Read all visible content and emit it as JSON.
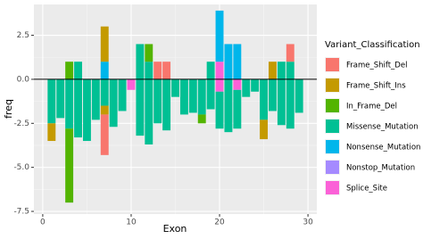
{
  "chart_data": {
    "type": "bar",
    "x_label": "Exon",
    "y_label": "freq",
    "legend_title": "Variant_Classification",
    "x": [
      1,
      2,
      3,
      4,
      5,
      6,
      7,
      8,
      9,
      10,
      11,
      12,
      13,
      14,
      15,
      16,
      17,
      18,
      19,
      20,
      21,
      22,
      23,
      24,
      25,
      26,
      27,
      28,
      29
    ],
    "series": [
      {
        "name": "Frame_Shift_Del",
        "color": "#F8766D",
        "values": [
          null,
          null,
          null,
          null,
          null,
          null,
          null,
          null,
          null,
          null,
          null,
          null,
          1,
          1,
          null,
          null,
          null,
          null,
          null,
          null,
          null,
          null,
          null,
          null,
          null,
          null,
          null,
          1,
          null
        ],
        "lower_values": [
          null,
          null,
          null,
          null,
          null,
          null,
          -2.3,
          null,
          null,
          null,
          null,
          null,
          null,
          null,
          null,
          null,
          null,
          null,
          null,
          null,
          null,
          null,
          null,
          null,
          null,
          null,
          null,
          null,
          null
        ]
      },
      {
        "name": "Frame_Shift_Ins",
        "color": "#C49A00",
        "values": [
          null,
          null,
          null,
          null,
          null,
          null,
          2,
          null,
          null,
          null,
          null,
          null,
          null,
          null,
          null,
          null,
          null,
          null,
          null,
          null,
          null,
          null,
          null,
          null,
          null,
          1,
          null,
          null,
          null
        ],
        "lower_values": [
          -1,
          null,
          null,
          null,
          null,
          null,
          -0.5,
          null,
          null,
          null,
          null,
          null,
          null,
          null,
          null,
          null,
          null,
          null,
          null,
          null,
          null,
          null,
          null,
          null,
          -1.1,
          null,
          null,
          null,
          null
        ]
      },
      {
        "name": "In_Frame_Del",
        "color": "#53B400",
        "values": [
          null,
          null,
          1,
          null,
          null,
          null,
          null,
          null,
          null,
          null,
          null,
          1,
          null,
          null,
          null,
          null,
          null,
          null,
          null,
          null,
          null,
          null,
          null,
          null,
          null,
          null,
          null,
          null,
          null
        ],
        "lower_values": [
          null,
          null,
          -4.2,
          null,
          null,
          null,
          null,
          null,
          null,
          null,
          null,
          null,
          null,
          null,
          null,
          null,
          null,
          -0.5,
          null,
          null,
          null,
          null,
          null,
          null,
          null,
          null,
          null,
          null,
          null
        ]
      },
      {
        "name": "Missense_Mutation",
        "color": "#00C094",
        "values": [
          null,
          null,
          null,
          1,
          null,
          null,
          null,
          null,
          null,
          null,
          2,
          1,
          null,
          null,
          null,
          null,
          null,
          null,
          1,
          null,
          null,
          null,
          null,
          null,
          null,
          null,
          1,
          1,
          null
        ],
        "lower_values": [
          -2.5,
          -2.2,
          -2.8,
          -3.3,
          -3.5,
          -2.3,
          -1.5,
          -2.7,
          -1.8,
          null,
          -3.2,
          -3.7,
          -2.5,
          -2.9,
          -1,
          -2,
          -1.9,
          -2,
          -1.7,
          -2.1,
          -3,
          -2.2,
          -1,
          -0.7,
          -2.3,
          -1.8,
          -2.6,
          -2.8,
          -1.9
        ]
      },
      {
        "name": "Nonsense_Mutation",
        "color": "#00B6EB",
        "values": [
          null,
          null,
          null,
          null,
          null,
          null,
          1,
          null,
          null,
          null,
          null,
          null,
          null,
          null,
          null,
          null,
          null,
          null,
          null,
          2.9,
          2,
          2,
          null,
          null,
          null,
          null,
          null,
          null,
          null
        ],
        "lower_values": [
          null,
          null,
          null,
          null,
          null,
          null,
          null,
          null,
          null,
          null,
          null,
          null,
          null,
          null,
          null,
          null,
          null,
          null,
          null,
          null,
          null,
          null,
          null,
          null,
          null,
          null,
          null,
          null,
          null
        ]
      },
      {
        "name": "Nonstop_Mutation",
        "color": "#A58AFF",
        "values": [
          null,
          null,
          null,
          null,
          null,
          null,
          null,
          null,
          null,
          null,
          null,
          null,
          null,
          null,
          null,
          null,
          null,
          null,
          null,
          null,
          null,
          null,
          null,
          null,
          null,
          null,
          null,
          null,
          null
        ],
        "lower_values": [
          null,
          null,
          null,
          null,
          null,
          null,
          null,
          null,
          null,
          null,
          null,
          null,
          null,
          null,
          null,
          null,
          null,
          null,
          null,
          null,
          null,
          null,
          null,
          null,
          null,
          null,
          null,
          null,
          null
        ]
      },
      {
        "name": "Splice_Site",
        "color": "#FB61D7",
        "values": [
          null,
          null,
          null,
          null,
          null,
          null,
          null,
          null,
          null,
          null,
          null,
          null,
          null,
          null,
          null,
          null,
          null,
          null,
          null,
          1,
          null,
          null,
          null,
          null,
          null,
          null,
          null,
          null,
          null
        ],
        "lower_values": [
          null,
          null,
          null,
          null,
          null,
          null,
          null,
          null,
          null,
          -0.6,
          null,
          null,
          null,
          null,
          null,
          null,
          null,
          null,
          null,
          -0.7,
          null,
          -0.6,
          null,
          null,
          null,
          null,
          null,
          null,
          null
        ]
      }
    ],
    "xlim": [
      -1,
      31
    ],
    "xticks": [
      0,
      10,
      20,
      30
    ],
    "ylim": [
      -7.65,
      4.25
    ],
    "yticks": [
      2.5,
      {
        "value": 0,
        "label": "0.0"
      },
      -2.5,
      {
        "value": -5,
        "label": "-5.0"
      },
      -7.5
    ],
    "grid": true
  }
}
